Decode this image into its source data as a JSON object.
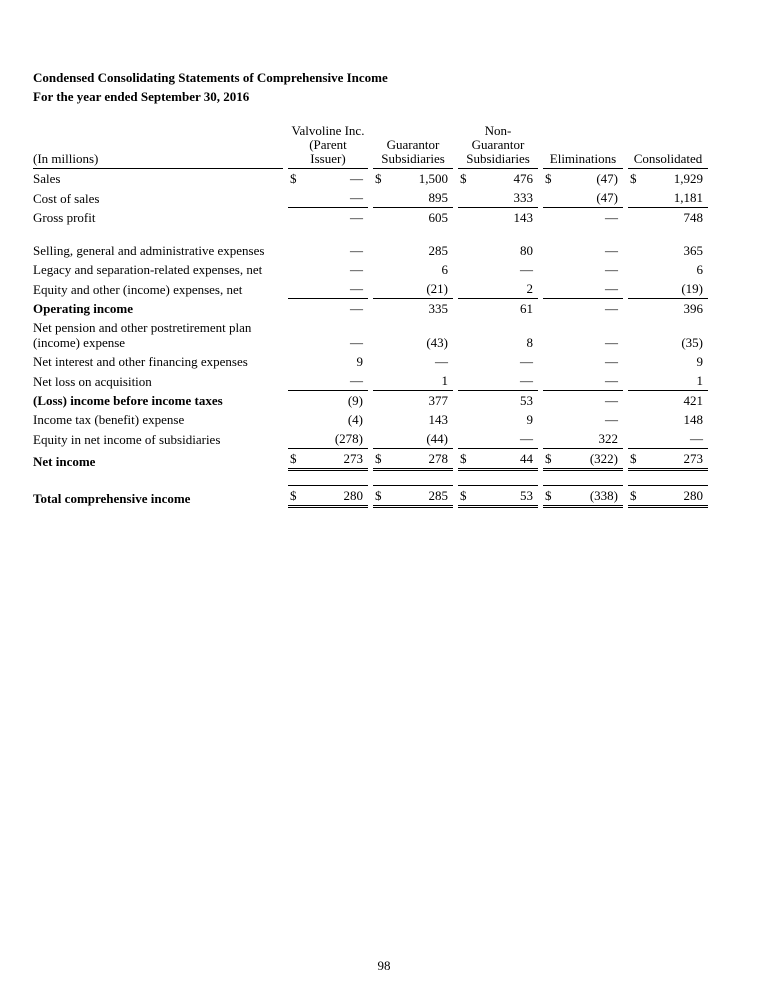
{
  "page": {
    "title": "Condensed Consolidating Statements of Comprehensive Income",
    "subtitle": "For the year ended September 30, 2016",
    "page_number": "98"
  },
  "table": {
    "currency_symbol": "$",
    "label_header": "(In millions)",
    "columns": [
      {
        "name": "Valvoline Inc. (Parent Issuer)",
        "lines": [
          "Valvoline Inc.",
          "(Parent",
          "Issuer)"
        ]
      },
      {
        "name": "Guarantor Subsidiaries",
        "lines": [
          "Guarantor",
          "Subsidiaries"
        ]
      },
      {
        "name": "Non-Guarantor Subsidiaries",
        "lines": [
          "Non-",
          "Guarantor",
          "Subsidiaries"
        ]
      },
      {
        "name": "Eliminations",
        "lines": [
          "Eliminations"
        ]
      },
      {
        "name": "Consolidated",
        "lines": [
          "Consolidated"
        ]
      }
    ],
    "rows": [
      {
        "label": "Sales",
        "dollar": true,
        "values": [
          "—",
          "1,500",
          "476",
          "(47)",
          "1,929"
        ]
      },
      {
        "label": "Cost of sales",
        "values": [
          "—",
          "895",
          "333",
          "(47)",
          "1,181"
        ],
        "rule_below": true
      },
      {
        "label": "Gross profit",
        "values": [
          "—",
          "605",
          "143",
          "—",
          "748"
        ]
      },
      {
        "type": "spacer"
      },
      {
        "label": "Selling, general and administrative expenses",
        "values": [
          "—",
          "285",
          "80",
          "—",
          "365"
        ]
      },
      {
        "label": "Legacy and separation-related expenses, net",
        "values": [
          "—",
          "6",
          "—",
          "—",
          "6"
        ]
      },
      {
        "label": "Equity and other (income) expenses, net",
        "values": [
          "—",
          "(21)",
          "2",
          "—",
          "(19)"
        ],
        "rule_below": true
      },
      {
        "label": "Operating income",
        "bold": true,
        "values": [
          "—",
          "335",
          "61",
          "—",
          "396"
        ]
      },
      {
        "label": "Net pension and other postretirement plan (income) expense",
        "values": [
          "—",
          "(43)",
          "8",
          "—",
          "(35)"
        ]
      },
      {
        "label": "Net interest and other financing expenses",
        "values": [
          "9",
          "—",
          "—",
          "—",
          "9"
        ]
      },
      {
        "label": "Net loss on acquisition",
        "values": [
          "—",
          "1",
          "—",
          "—",
          "1"
        ],
        "rule_below": true
      },
      {
        "label": "(Loss) income before income taxes",
        "bold": true,
        "values": [
          "(9)",
          "377",
          "53",
          "—",
          "421"
        ]
      },
      {
        "label": "Income tax (benefit) expense",
        "values": [
          "(4)",
          "143",
          "9",
          "—",
          "148"
        ]
      },
      {
        "label": "Equity in net income of subsidiaries",
        "values": [
          "(278)",
          "(44)",
          "—",
          "322",
          "—"
        ],
        "rule_below": true
      },
      {
        "label": "Net income",
        "bold": true,
        "dollar": true,
        "values": [
          "273",
          "278",
          "44",
          "(322)",
          "273"
        ],
        "double_below": true
      },
      {
        "type": "spacer"
      },
      {
        "label": "Total comprehensive income",
        "bold": true,
        "dollar": true,
        "values": [
          "280",
          "285",
          "53",
          "(338)",
          "280"
        ],
        "rule_above": true,
        "double_below": true
      }
    ]
  }
}
